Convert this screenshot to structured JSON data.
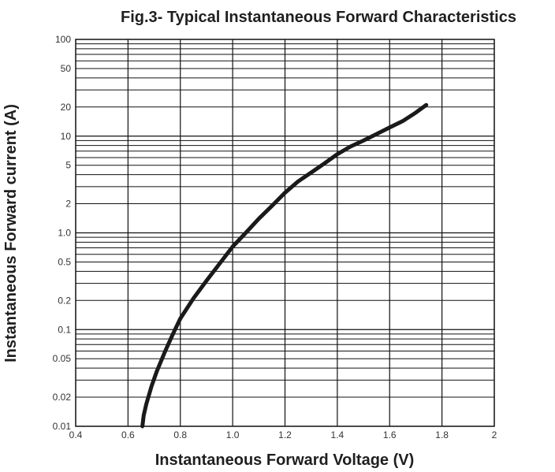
{
  "chart_data": {
    "type": "line",
    "title": "Fig.3- Typical Instantaneous Forward Characteristics",
    "xlabel": "Instantaneous Forward Voltage (V)",
    "ylabel": "Instantaneous Forward current (A)",
    "xlim": [
      0.4,
      2
    ],
    "ylim": [
      0.01,
      100
    ],
    "yscale": "log",
    "grid": true,
    "x_ticks": [
      {
        "value": 0.4,
        "label": "0.4"
      },
      {
        "value": 0.6,
        "label": "0.6"
      },
      {
        "value": 0.8,
        "label": "0.8"
      },
      {
        "value": 1.0,
        "label": "1.0"
      },
      {
        "value": 1.2,
        "label": "1.2"
      },
      {
        "value": 1.4,
        "label": "1.4"
      },
      {
        "value": 1.6,
        "label": "1.6"
      },
      {
        "value": 1.8,
        "label": "1.8"
      },
      {
        "value": 2.0,
        "label": "2"
      }
    ],
    "y_ticks": [
      {
        "value": 100,
        "label": "100"
      },
      {
        "value": 50,
        "label": "50"
      },
      {
        "value": 20,
        "label": "20"
      },
      {
        "value": 10,
        "label": "10"
      },
      {
        "value": 5,
        "label": "5"
      },
      {
        "value": 2,
        "label": "2"
      },
      {
        "value": 1,
        "label": "1.0"
      },
      {
        "value": 0.5,
        "label": "0.5"
      },
      {
        "value": 0.2,
        "label": "0.2"
      },
      {
        "value": 0.1,
        "label": "0.1"
      },
      {
        "value": 0.05,
        "label": "0.05"
      },
      {
        "value": 0.02,
        "label": "0.02"
      },
      {
        "value": 0.01,
        "label": "0.01"
      }
    ],
    "series": [
      {
        "color": "#1a1a1a",
        "points": [
          {
            "x": 0.655,
            "y": 0.01
          },
          {
            "x": 0.66,
            "y": 0.013
          },
          {
            "x": 0.67,
            "y": 0.017
          },
          {
            "x": 0.69,
            "y": 0.026
          },
          {
            "x": 0.71,
            "y": 0.037
          },
          {
            "x": 0.74,
            "y": 0.058
          },
          {
            "x": 0.77,
            "y": 0.088
          },
          {
            "x": 0.8,
            "y": 0.13
          },
          {
            "x": 0.85,
            "y": 0.21
          },
          {
            "x": 0.9,
            "y": 0.32
          },
          {
            "x": 0.95,
            "y": 0.48
          },
          {
            "x": 1.0,
            "y": 0.72
          },
          {
            "x": 1.05,
            "y": 1.0
          },
          {
            "x": 1.1,
            "y": 1.4
          },
          {
            "x": 1.15,
            "y": 1.9
          },
          {
            "x": 1.2,
            "y": 2.6
          },
          {
            "x": 1.25,
            "y": 3.4
          },
          {
            "x": 1.3,
            "y": 4.2
          },
          {
            "x": 1.35,
            "y": 5.2
          },
          {
            "x": 1.4,
            "y": 6.5
          },
          {
            "x": 1.45,
            "y": 7.8
          },
          {
            "x": 1.5,
            "y": 9.0
          },
          {
            "x": 1.55,
            "y": 10.5
          },
          {
            "x": 1.6,
            "y": 12.3
          },
          {
            "x": 1.65,
            "y": 14.3
          },
          {
            "x": 1.7,
            "y": 17.5
          },
          {
            "x": 1.74,
            "y": 21
          }
        ]
      }
    ]
  }
}
